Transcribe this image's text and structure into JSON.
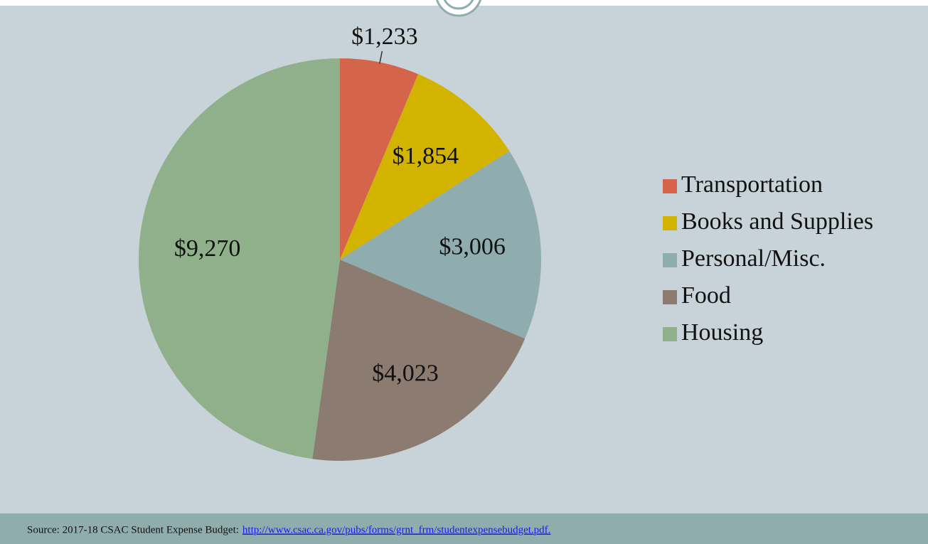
{
  "chart_data": {
    "type": "pie",
    "categories": [
      "Transportation",
      "Books and Supplies",
      "Personal/Misc.",
      "Food",
      "Housing"
    ],
    "values": [
      1233,
      1854,
      3006,
      4023,
      9270
    ],
    "value_labels": [
      "$1,233",
      "$1,854",
      "$3,006",
      "$4,023",
      "$9,270"
    ],
    "colors": [
      "#d4654b",
      "#d1b300",
      "#8fadaf",
      "#8c7b70",
      "#8fb08a"
    ],
    "legend": "right",
    "source": "Source: 2017-18 CSAC Student Expense Budget:",
    "source_url": "http://www.csac.ca.gov/pubs/forms/grnt_frm/studentexpensebudget.pdf."
  }
}
